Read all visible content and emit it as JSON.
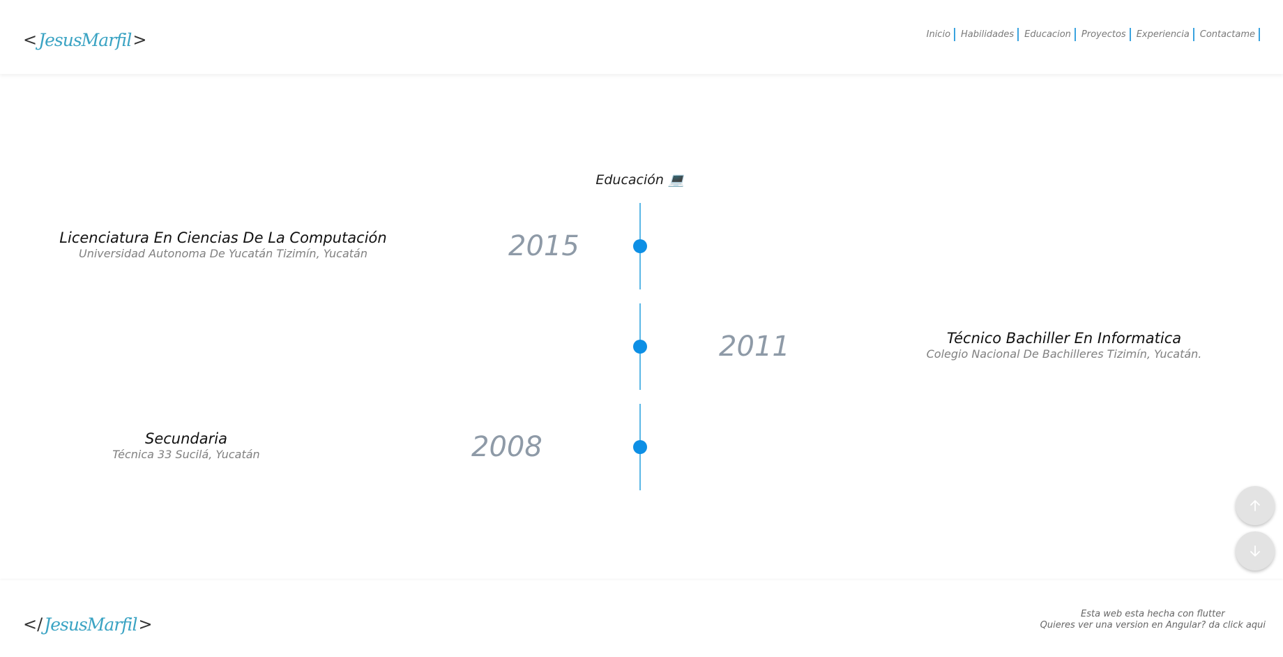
{
  "header": {
    "logo": {
      "open": "<",
      "name": "JesusMarfil",
      "close": ">"
    },
    "nav": [
      {
        "label": "Inicio"
      },
      {
        "label": "Habilidades"
      },
      {
        "label": "Educacion"
      },
      {
        "label": "Proyectos"
      },
      {
        "label": "Experiencia"
      },
      {
        "label": "Contactame"
      }
    ]
  },
  "main": {
    "title": "Educación 💻",
    "timeline": [
      {
        "year": "2015",
        "title": "Licenciatura En Ciencias De La Computación",
        "subtitle": "Universidad Autonoma De Yucatán Tizimín, Yucatán",
        "side": "left"
      },
      {
        "year": "2011",
        "title": "Técnico Bachiller En Informatica",
        "subtitle": "Colegio Nacional De Bachilleres Tizimín, Yucatán.",
        "side": "right"
      },
      {
        "year": "2008",
        "title": "Secundaria",
        "subtitle": "Técnica 33 Sucilá, Yucatán",
        "side": "left"
      }
    ]
  },
  "fab": {
    "up_icon": "arrow-up-icon",
    "down_icon": "arrow-down-icon"
  },
  "footer": {
    "logo": {
      "open": "</",
      "name": "JesusMarfil",
      "close": ">"
    },
    "note_line1": "Esta web esta hecha con flutter",
    "note_line2": "Quieres ver una version en Angular? da click aqui"
  },
  "colors": {
    "accent": "#3aa3df",
    "timeline_dot": "#0d8fe5",
    "logo_name": "#3aa3c3"
  }
}
